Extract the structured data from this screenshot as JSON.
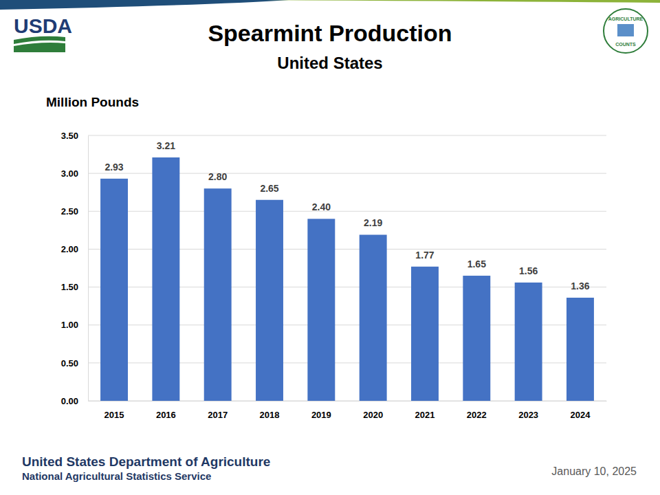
{
  "chart_data": {
    "type": "bar",
    "title": "Spearmint Production",
    "subtitle": "United States",
    "y_label": "Million Pounds",
    "logo": "USDA",
    "badge_top": "AGRICULTURE",
    "badge_bottom": "COUNTS",
    "footer": "United States Department of Agriculture",
    "footer_subtitle": "National Agricultural Statistics Service",
    "date": "January 10, 2025",
    "categories": [
      "2015",
      "2016",
      "2017",
      "2018",
      "2019",
      "2020",
      "2021",
      "2022",
      "2023",
      "2024"
    ],
    "values": [
      2.93,
      3.21,
      2.8,
      2.65,
      2.4,
      2.19,
      1.77,
      1.65,
      1.56,
      1.36
    ],
    "value_labels": [
      "2.93",
      "3.21",
      "2.80",
      "2.65",
      "2.40",
      "2.19",
      "1.77",
      "1.65",
      "1.56",
      "1.36"
    ],
    "color": "#4472c4",
    "ylim": [
      0,
      3.5
    ],
    "yticks": [
      {
        "value": 0,
        "label": "0.00"
      },
      {
        "value": 0.5,
        "label": "0.50"
      },
      {
        "value": 1,
        "label": "1.00"
      },
      {
        "value": 1.5,
        "label": "1.50"
      },
      {
        "value": 2,
        "label": "2.00"
      },
      {
        "value": 2.5,
        "label": "2.50"
      },
      {
        "value": 3,
        "label": "3.00"
      },
      {
        "value": 3.5,
        "label": "3.50"
      }
    ],
    "grid": true,
    "data_labels": true
  }
}
